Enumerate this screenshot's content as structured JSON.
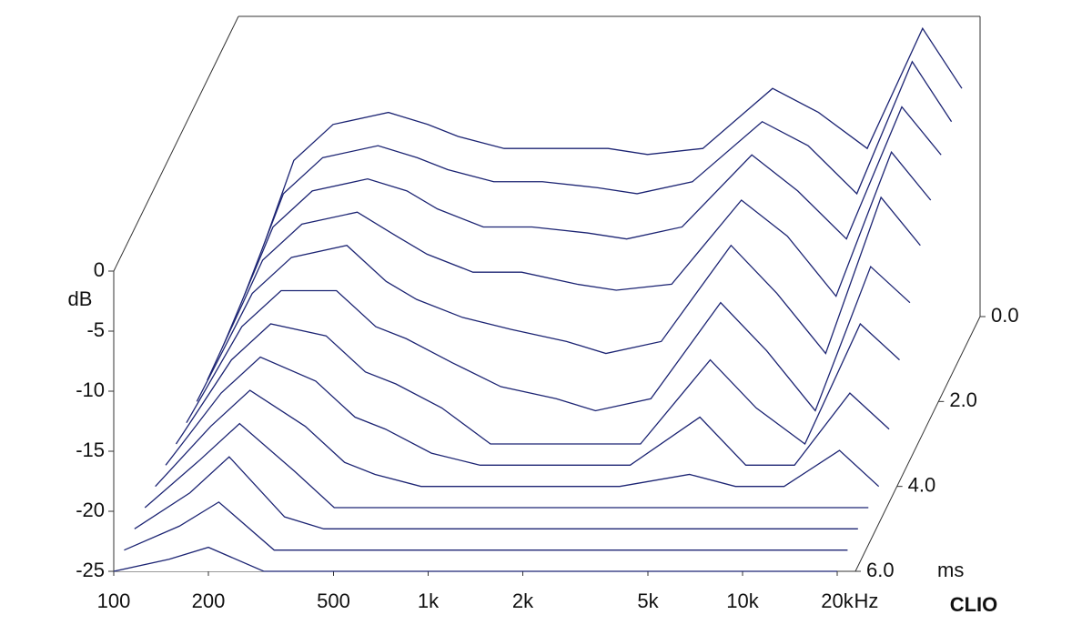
{
  "chart_data": {
    "type": "waterfall",
    "color": "#1c2473",
    "y_label": "dB",
    "x_label": "Hz",
    "z_label": "ms",
    "brand": "CLIO",
    "xscale": "log",
    "xlim": [
      100,
      20000
    ],
    "xticks": [
      {
        "value": 100,
        "label": "100"
      },
      {
        "value": 200,
        "label": "200"
      },
      {
        "value": 500,
        "label": "500"
      },
      {
        "value": 1000,
        "label": "1k"
      },
      {
        "value": 2000,
        "label": "2k"
      },
      {
        "value": 5000,
        "label": "5k"
      },
      {
        "value": 10000,
        "label": "10k"
      },
      {
        "value": 20000,
        "label": "20k"
      }
    ],
    "ylim": [
      -25,
      0
    ],
    "yticks": [
      0,
      -5,
      -10,
      -15,
      -20,
      -25
    ],
    "zlim": [
      0,
      6
    ],
    "zticks": [
      {
        "value": 0,
        "label": "0.0"
      },
      {
        "value": 2,
        "label": "2.0"
      },
      {
        "value": 4,
        "label": "4.0"
      },
      {
        "value": 6,
        "label": "6.0"
      }
    ],
    "x": [
      100,
      150,
      200,
      300,
      400,
      500,
      700,
      1000,
      1500,
      2000,
      3000,
      5000,
      7000,
      10000,
      15000,
      20000
    ],
    "series": [
      {
        "z": 0,
        "values": [
          -25,
          -12,
          -9,
          -8,
          -9,
          -10,
          -11,
          -11,
          -11,
          -11.5,
          -11,
          -6,
          -8,
          -11,
          -1,
          -6
        ]
      },
      {
        "z": 0.5,
        "values": [
          -25,
          -13,
          -10,
          -9,
          -10,
          -11,
          -12,
          -12,
          -12.5,
          -13,
          -12,
          -7,
          -9,
          -13,
          -2,
          -7
        ]
      },
      {
        "z": 1,
        "values": [
          -25,
          -14,
          -11,
          -10,
          -11,
          -12.5,
          -14,
          -14,
          -14.5,
          -15,
          -14,
          -8,
          -11,
          -15,
          -4,
          -8
        ]
      },
      {
        "z": 1.5,
        "values": [
          -25,
          -15,
          -12,
          -11,
          -13,
          -14.5,
          -16,
          -16,
          -17,
          -17.5,
          -17,
          -10,
          -13,
          -18,
          -6,
          -10
        ]
      },
      {
        "z": 2,
        "values": [
          -25,
          -16,
          -13,
          -12,
          -15,
          -16.5,
          -18,
          -19,
          -20,
          -21,
          -20,
          -12,
          -16,
          -21,
          -8,
          -12
        ]
      },
      {
        "z": 2.5,
        "values": [
          -25,
          -17,
          -14,
          -14,
          -17,
          -18,
          -20,
          -22,
          -23,
          -24,
          -23,
          -15,
          -19,
          -24,
          -12,
          -15
        ]
      },
      {
        "z": 3,
        "values": [
          -25,
          -18,
          -15,
          -16,
          -19,
          -20,
          -22,
          -25,
          -25,
          -25,
          -25,
          -18,
          -22,
          -25,
          -15,
          -18
        ]
      },
      {
        "z": 3.5,
        "values": [
          -25,
          -19,
          -16,
          -18,
          -21,
          -22,
          -24,
          -25,
          -25,
          -25,
          -25,
          -21,
          -25,
          -25,
          -19,
          -22
        ]
      },
      {
        "z": 4,
        "values": [
          -25,
          -20,
          -17,
          -20,
          -23,
          -24,
          -25,
          -25,
          -25,
          -25,
          -25,
          -24,
          -25,
          -25,
          -22,
          -25
        ]
      },
      {
        "z": 4.5,
        "values": [
          -25,
          -21,
          -18,
          -22,
          -25,
          -25,
          -25,
          -25,
          -25,
          -25,
          -25,
          -25,
          -25,
          -25,
          -25,
          -25
        ]
      },
      {
        "z": 5,
        "values": [
          -25,
          -22,
          -19,
          -24,
          -25,
          -25,
          -25,
          -25,
          -25,
          -25,
          -25,
          -25,
          -25,
          -25,
          -25,
          -25
        ]
      },
      {
        "z": 5.5,
        "values": [
          -25,
          -23,
          -21,
          -25,
          -25,
          -25,
          -25,
          -25,
          -25,
          -25,
          -25,
          -25,
          -25,
          -25,
          -25,
          -25
        ]
      },
      {
        "z": 6,
        "values": [
          -25,
          -24,
          -23,
          -25,
          -25,
          -25,
          -25,
          -25,
          -25,
          -25,
          -25,
          -25,
          -25,
          -25,
          -25,
          -25
        ]
      }
    ]
  }
}
